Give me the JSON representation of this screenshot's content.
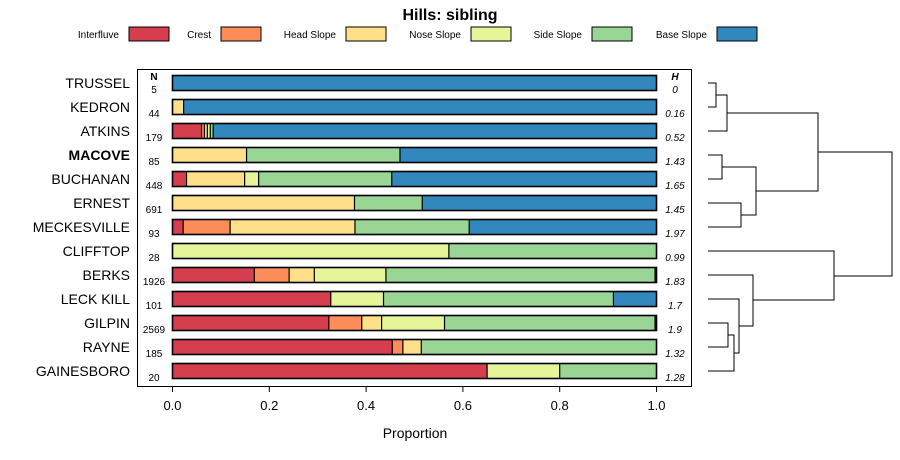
{
  "chart_data": {
    "type": "bar",
    "stacked": true,
    "orientation": "horizontal",
    "title": "Hills: sibling",
    "xlabel": "Proportion",
    "ylabel": "",
    "xlim": [
      0,
      1
    ],
    "x_ticks": [
      "0.0",
      "0.2",
      "0.4",
      "0.6",
      "0.8",
      "1.0"
    ],
    "n_header": "N",
    "h_header": "H",
    "legend": [
      {
        "name": "Interfluve",
        "color": "#d53e4f"
      },
      {
        "name": "Crest",
        "color": "#fc8d59"
      },
      {
        "name": "Head Slope",
        "color": "#fee08b"
      },
      {
        "name": "Nose Slope",
        "color": "#e6f598"
      },
      {
        "name": "Side Slope",
        "color": "#99d594"
      },
      {
        "name": "Base Slope",
        "color": "#3288bd"
      }
    ],
    "rows": [
      {
        "name": "TRUSSEL",
        "n": "5",
        "h": "0",
        "bold": false,
        "values": [
          0,
          0,
          0,
          0,
          0,
          1.0
        ]
      },
      {
        "name": "KEDRON",
        "n": "44",
        "h": "0.16",
        "bold": false,
        "values": [
          0,
          0,
          0.023,
          0,
          0,
          0.977
        ]
      },
      {
        "name": "ATKINS",
        "n": "179",
        "h": "0.52",
        "bold": false,
        "values": [
          0.06,
          0.006,
          0.006,
          0.006,
          0.006,
          0.916
        ]
      },
      {
        "name": "MACOVE",
        "n": "85",
        "h": "1.43",
        "bold": true,
        "values": [
          0,
          0,
          0.153,
          0,
          0.317,
          0.53
        ]
      },
      {
        "name": "BUCHANAN",
        "n": "448",
        "h": "1.65",
        "bold": false,
        "values": [
          0.029,
          0,
          0.12,
          0.029,
          0.275,
          0.547
        ]
      },
      {
        "name": "ERNEST",
        "n": "691",
        "h": "1.45",
        "bold": false,
        "values": [
          0,
          0,
          0.376,
          0,
          0.14,
          0.484
        ]
      },
      {
        "name": "MECKESVILLE",
        "n": "93",
        "h": "1.97",
        "bold": false,
        "values": [
          0.022,
          0.097,
          0.258,
          0,
          0.236,
          0.387
        ]
      },
      {
        "name": "CLIFFTOP",
        "n": "28",
        "h": "0.99",
        "bold": false,
        "values": [
          0,
          0,
          0,
          0.571,
          0.429,
          0
        ]
      },
      {
        "name": "BERKS",
        "n": "1926",
        "h": "1.83",
        "bold": false,
        "values": [
          0.169,
          0.072,
          0.052,
          0.148,
          0.556,
          0.003
        ]
      },
      {
        "name": "LECK KILL",
        "n": "101",
        "h": "1.7",
        "bold": false,
        "values": [
          0.327,
          0,
          0,
          0.109,
          0.475,
          0.089
        ]
      },
      {
        "name": "GILPIN",
        "n": "2569",
        "h": "1.9",
        "bold": false,
        "values": [
          0.323,
          0.068,
          0.041,
          0.13,
          0.435,
          0.003
        ]
      },
      {
        "name": "RAYNE",
        "n": "185",
        "h": "1.32",
        "bold": false,
        "values": [
          0.454,
          0.022,
          0.038,
          0,
          0.486,
          0
        ]
      },
      {
        "name": "GAINESBORO",
        "n": "20",
        "h": "1.28",
        "bold": false,
        "values": [
          0.65,
          0,
          0,
          0.15,
          0.2,
          0
        ]
      }
    ]
  }
}
